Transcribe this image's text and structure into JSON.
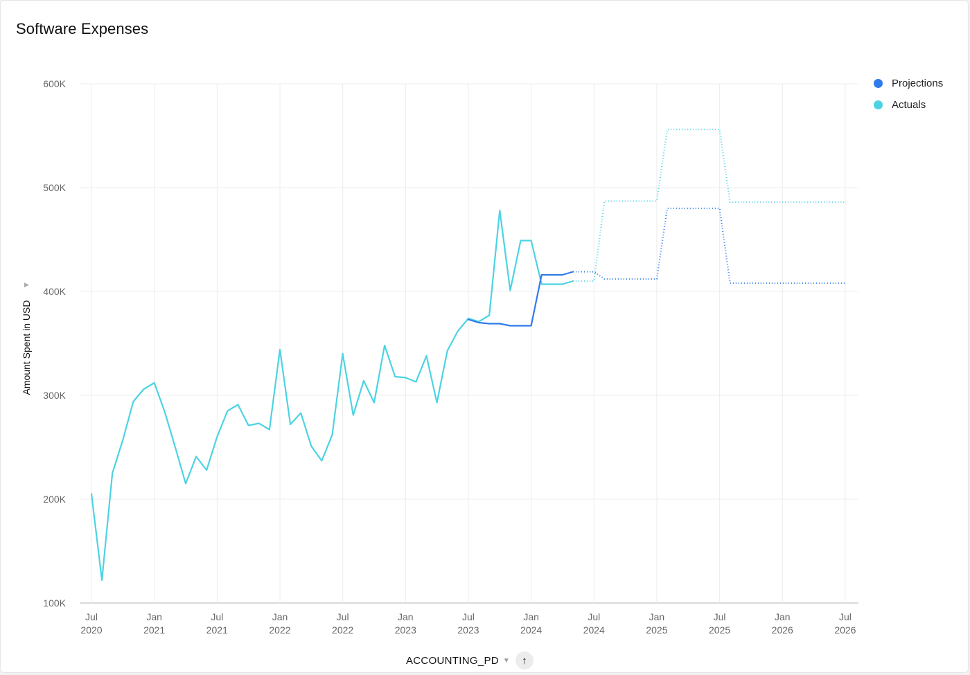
{
  "title": "Software Expenses",
  "legend": [
    {
      "name": "Projections",
      "color": "#2F7BEB"
    },
    {
      "name": "Actuals",
      "color": "#4CD3E3"
    }
  ],
  "x_axis_field": "ACCOUNTING_PD",
  "sort_icon": "arrow-up-icon",
  "chart_data": {
    "type": "line",
    "ylabel": "Amount Spent in USD",
    "xlabel": "",
    "ylim": [
      100000,
      600000
    ],
    "y_ticks": [
      100000,
      200000,
      300000,
      400000,
      500000,
      600000
    ],
    "y_tick_labels": [
      "100K",
      "200K",
      "300K",
      "400K",
      "500K",
      "600K"
    ],
    "x_range": [
      "2020-07",
      "2026-08"
    ],
    "x_ticks": [
      "2020-07",
      "2021-01",
      "2021-07",
      "2022-01",
      "2022-07",
      "2023-01",
      "2023-07",
      "2024-01",
      "2024-07",
      "2025-01",
      "2025-07",
      "2026-01",
      "2026-07"
    ],
    "x_tick_labels": [
      [
        "Jul",
        "2020"
      ],
      [
        "Jan",
        "2021"
      ],
      [
        "Jul",
        "2021"
      ],
      [
        "Jan",
        "2022"
      ],
      [
        "Jul",
        "2022"
      ],
      [
        "Jan",
        "2023"
      ],
      [
        "Jul",
        "2023"
      ],
      [
        "Jan",
        "2024"
      ],
      [
        "Jul",
        "2024"
      ],
      [
        "Jan",
        "2025"
      ],
      [
        "Jul",
        "2025"
      ],
      [
        "Jan",
        "2026"
      ],
      [
        "Jul",
        "2026"
      ]
    ],
    "grid": true,
    "legend_position": "top-right",
    "series": [
      {
        "name": "Actuals",
        "color": "#4CD3E3",
        "style": "solid",
        "points": [
          [
            "2020-07",
            205000
          ],
          [
            "2020-08",
            122000
          ],
          [
            "2020-09",
            225000
          ],
          [
            "2020-10",
            257000
          ],
          [
            "2020-11",
            294000
          ],
          [
            "2020-12",
            306000
          ],
          [
            "2021-01",
            312000
          ],
          [
            "2021-02",
            284000
          ],
          [
            "2021-03",
            250000
          ],
          [
            "2021-04",
            215000
          ],
          [
            "2021-05",
            241000
          ],
          [
            "2021-06",
            228000
          ],
          [
            "2021-07",
            260000
          ],
          [
            "2021-08",
            285000
          ],
          [
            "2021-09",
            291000
          ],
          [
            "2021-10",
            271000
          ],
          [
            "2021-11",
            273000
          ],
          [
            "2021-12",
            267000
          ],
          [
            "2022-01",
            344000
          ],
          [
            "2022-02",
            272000
          ],
          [
            "2022-03",
            283000
          ],
          [
            "2022-04",
            251000
          ],
          [
            "2022-05",
            237000
          ],
          [
            "2022-06",
            262000
          ],
          [
            "2022-07",
            340000
          ],
          [
            "2022-08",
            281000
          ],
          [
            "2022-09",
            314000
          ],
          [
            "2022-10",
            293000
          ],
          [
            "2022-11",
            348000
          ],
          [
            "2022-12",
            318000
          ],
          [
            "2023-01",
            317000
          ],
          [
            "2023-02",
            313000
          ],
          [
            "2023-03",
            338000
          ],
          [
            "2023-04",
            293000
          ],
          [
            "2023-05",
            343000
          ],
          [
            "2023-06",
            362000
          ],
          [
            "2023-07",
            374000
          ],
          [
            "2023-08",
            371000
          ],
          [
            "2023-09",
            377000
          ],
          [
            "2023-10",
            478000
          ],
          [
            "2023-11",
            401000
          ],
          [
            "2023-12",
            449000
          ],
          [
            "2024-01",
            449000
          ],
          [
            "2024-02",
            407000
          ],
          [
            "2024-03",
            407000
          ],
          [
            "2024-04",
            407000
          ],
          [
            "2024-05",
            410000
          ]
        ]
      },
      {
        "name": "Actuals",
        "color": "#4CD3E3",
        "style": "dotted",
        "points": [
          [
            "2024-05",
            410000
          ],
          [
            "2024-07",
            410000
          ],
          [
            "2024-08",
            487000
          ],
          [
            "2024-12",
            487000
          ],
          [
            "2025-01",
            487000
          ],
          [
            "2025-02",
            556000
          ],
          [
            "2025-06",
            556000
          ],
          [
            "2025-07",
            556000
          ],
          [
            "2025-08",
            486000
          ],
          [
            "2026-07",
            486000
          ]
        ]
      },
      {
        "name": "Projections",
        "color": "#2F7BEB",
        "style": "solid",
        "points": [
          [
            "2023-07",
            373000
          ],
          [
            "2023-08",
            370000
          ],
          [
            "2023-09",
            369000
          ],
          [
            "2023-10",
            369000
          ],
          [
            "2023-11",
            367000
          ],
          [
            "2023-12",
            367000
          ],
          [
            "2024-01",
            367000
          ],
          [
            "2024-02",
            416000
          ],
          [
            "2024-03",
            416000
          ],
          [
            "2024-04",
            416000
          ],
          [
            "2024-05",
            419000
          ]
        ]
      },
      {
        "name": "Projections",
        "color": "#2F7BEB",
        "style": "dotted",
        "points": [
          [
            "2024-05",
            419000
          ],
          [
            "2024-07",
            419000
          ],
          [
            "2024-08",
            412000
          ],
          [
            "2024-12",
            412000
          ],
          [
            "2025-01",
            412000
          ],
          [
            "2025-02",
            480000
          ],
          [
            "2025-06",
            480000
          ],
          [
            "2025-07",
            480000
          ],
          [
            "2025-08",
            408000
          ],
          [
            "2026-07",
            408000
          ]
        ]
      }
    ]
  }
}
